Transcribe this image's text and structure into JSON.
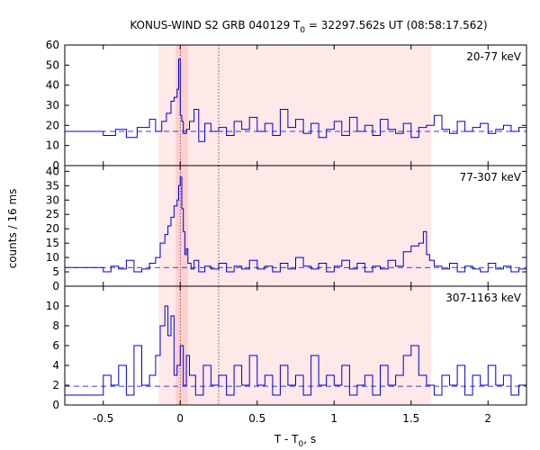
{
  "chart_data": {
    "type": "line",
    "title": "KONUS-WIND S2 GRB 040129 T",
    "title_sub": "0",
    "title_suffix": " = 32297.562s UT (08:58:17.562)",
    "xlabel": "T - T",
    "xlabel_sub": "0",
    "xlabel_suffix": ", s",
    "ylabel": "counts / 16 ms",
    "xlim": [
      -0.75,
      2.25
    ],
    "xticks": [
      -0.5,
      0,
      0.5,
      1,
      1.5,
      2
    ],
    "xtick_labels": [
      "-0.5",
      "0",
      "0.5",
      "1",
      "1.5",
      "2"
    ],
    "shaded_interval": [
      -0.14,
      1.63
    ],
    "inner_shaded_interval": [
      -0.03,
      0.05
    ],
    "dotted_lines": [
      0,
      0.25
    ],
    "line_color": "#0000cc",
    "shade_color": "#ffe8e8",
    "inner_shade_color": "#ffd0d0",
    "panels": [
      {
        "label": "20-77 keV",
        "ylim": [
          0,
          60
        ],
        "yticks": [
          0,
          10,
          20,
          30,
          40,
          50,
          60
        ],
        "background_level": 17,
        "series": [
          {
            "x": [
              -0.75,
              -0.5,
              -0.42,
              -0.35,
              -0.28,
              -0.2,
              -0.16,
              -0.12,
              -0.09,
              -0.06,
              -0.04,
              -0.02,
              -0.01,
              0.0,
              0.01,
              0.02,
              0.04,
              0.06,
              0.09,
              0.12,
              0.16,
              0.2,
              0.25,
              0.3,
              0.35,
              0.4,
              0.45,
              0.5,
              0.55,
              0.6,
              0.65,
              0.7,
              0.75,
              0.8,
              0.85,
              0.9,
              0.95,
              1.0,
              1.05,
              1.1,
              1.15,
              1.2,
              1.25,
              1.3,
              1.35,
              1.4,
              1.45,
              1.5,
              1.55,
              1.6,
              1.65,
              1.7,
              1.75,
              1.8,
              1.85,
              1.9,
              1.95,
              2.0,
              2.05,
              2.1,
              2.15,
              2.2
            ],
            "y": [
              17,
              15,
              18,
              14,
              19,
              23,
              17,
              22,
              26,
              32,
              34,
              38,
              53,
              25,
              22,
              16,
              18,
              22,
              28,
              12,
              21,
              17,
              19,
              15,
              22,
              18,
              24,
              17,
              21,
              15,
              28,
              19,
              23,
              16,
              21,
              14,
              18,
              22,
              15,
              24,
              17,
              20,
              15,
              23,
              18,
              16,
              21,
              14,
              19,
              20,
              25,
              18,
              16,
              22,
              17,
              19,
              21,
              16,
              18,
              20,
              17,
              19
            ]
          }
        ]
      },
      {
        "label": "77-307 keV",
        "ylim": [
          0,
          42
        ],
        "yticks": [
          0,
          5,
          10,
          15,
          20,
          25,
          30,
          35,
          40
        ],
        "background_level": 6.5,
        "series": [
          {
            "x": [
              -0.75,
              -0.5,
              -0.45,
              -0.4,
              -0.35,
              -0.3,
              -0.25,
              -0.2,
              -0.16,
              -0.13,
              -0.1,
              -0.08,
              -0.06,
              -0.04,
              -0.02,
              -0.01,
              0.0,
              0.01,
              0.02,
              0.03,
              0.04,
              0.05,
              0.07,
              0.09,
              0.12,
              0.16,
              0.2,
              0.25,
              0.3,
              0.35,
              0.4,
              0.45,
              0.5,
              0.55,
              0.6,
              0.65,
              0.7,
              0.75,
              0.8,
              0.85,
              0.9,
              0.95,
              1.0,
              1.05,
              1.1,
              1.15,
              1.2,
              1.25,
              1.3,
              1.35,
              1.4,
              1.45,
              1.5,
              1.55,
              1.58,
              1.6,
              1.62,
              1.65,
              1.7,
              1.75,
              1.8,
              1.85,
              1.9,
              1.95,
              2.0,
              2.05,
              2.1,
              2.15,
              2.2
            ],
            "y": [
              6.5,
              5,
              7,
              6,
              9,
              5,
              6,
              8,
              10,
              15,
              18,
              21,
              24,
              28,
              30,
              35,
              38,
              27,
              19,
              11,
              13,
              8,
              6,
              9,
              5,
              7,
              6,
              8,
              5,
              7,
              6,
              9,
              6,
              7,
              5,
              8,
              6,
              10,
              7,
              6,
              8,
              5,
              7,
              9,
              6,
              8,
              5,
              7,
              6,
              9,
              7,
              12,
              14,
              15,
              19,
              11,
              9,
              7,
              6,
              8,
              5,
              7,
              6,
              5,
              8,
              6,
              7,
              5,
              6
            ]
          }
        ]
      },
      {
        "label": "307-1163 keV",
        "ylim": [
          0,
          12
        ],
        "yticks": [
          0,
          2,
          4,
          6,
          8,
          10
        ],
        "background_level": 1.9,
        "series": [
          {
            "x": [
              -0.75,
              -0.5,
              -0.45,
              -0.4,
              -0.35,
              -0.3,
              -0.25,
              -0.2,
              -0.16,
              -0.13,
              -0.1,
              -0.08,
              -0.06,
              -0.04,
              -0.02,
              0.0,
              0.02,
              0.04,
              0.06,
              0.1,
              0.15,
              0.2,
              0.25,
              0.3,
              0.35,
              0.4,
              0.45,
              0.5,
              0.55,
              0.6,
              0.65,
              0.7,
              0.75,
              0.8,
              0.85,
              0.9,
              0.95,
              1.0,
              1.05,
              1.1,
              1.15,
              1.2,
              1.25,
              1.3,
              1.35,
              1.4,
              1.45,
              1.5,
              1.55,
              1.6,
              1.65,
              1.7,
              1.75,
              1.8,
              1.85,
              1.9,
              1.95,
              2.0,
              2.05,
              2.1,
              2.15,
              2.2
            ],
            "y": [
              1,
              3,
              2,
              4,
              1,
              6,
              2,
              3,
              5,
              8,
              10,
              7,
              9,
              3,
              4,
              6,
              2,
              5,
              3,
              1,
              4,
              2,
              3,
              1,
              4,
              2,
              5,
              2,
              3,
              1,
              4,
              2,
              3,
              1,
              5,
              2,
              3,
              2,
              4,
              1,
              2,
              3,
              1,
              4,
              2,
              3,
              5,
              6,
              3,
              2,
              1,
              3,
              2,
              4,
              1,
              3,
              2,
              4,
              2,
              3,
              1,
              2
            ]
          }
        ]
      }
    ]
  }
}
